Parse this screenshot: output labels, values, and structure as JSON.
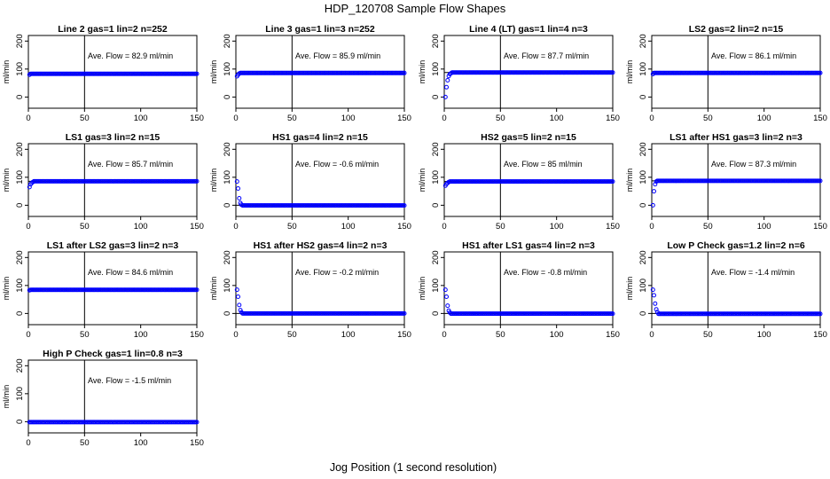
{
  "figure": {
    "title": "HDP_120708  Sample Flow Shapes",
    "xlabel": "Jog Position (1 second resolution)"
  },
  "style": {
    "point_color": "#0000ff",
    "line_color": "#000000"
  },
  "chart_data": [
    {
      "type": "scatter",
      "title": "Line 2 gas=1 lin=2 n=252",
      "annotation": "Ave. Flow =  82.9  ml/min",
      "ylabel": "ml/min",
      "xlim": [
        0,
        150
      ],
      "ylim": [
        -40,
        220
      ],
      "xticks": [
        0,
        50,
        100,
        150
      ],
      "yticks": [
        0,
        100,
        200
      ],
      "hlines": [
        82.9
      ],
      "vlines": [
        50
      ],
      "profile": {
        "start": [
          [
            1,
            80
          ]
        ],
        "plateau": 82.9,
        "plateau_from": 2
      }
    },
    {
      "type": "scatter",
      "title": "Line 3 gas=1 lin=3 n=252",
      "annotation": "Ave. Flow =  85.9  ml/min",
      "ylabel": "ml/min",
      "xlim": [
        0,
        150
      ],
      "ylim": [
        -40,
        220
      ],
      "xticks": [
        0,
        50,
        100,
        150
      ],
      "yticks": [
        0,
        100,
        200
      ],
      "hlines": [
        85.9
      ],
      "vlines": [
        50
      ],
      "profile": {
        "start": [
          [
            1,
            74
          ],
          [
            2,
            80
          ],
          [
            3,
            84
          ]
        ],
        "plateau": 85.9,
        "plateau_from": 4
      }
    },
    {
      "type": "scatter",
      "title": "Line 4 (LT) gas=1 lin=4 n=3",
      "annotation": "Ave. Flow =  87.7  ml/min",
      "ylabel": "ml/min",
      "xlim": [
        0,
        150
      ],
      "ylim": [
        -40,
        220
      ],
      "xticks": [
        0,
        50,
        100,
        150
      ],
      "yticks": [
        0,
        100,
        200
      ],
      "hlines": [
        87.7
      ],
      "vlines": [
        50
      ],
      "profile": {
        "start": [
          [
            1,
            0
          ],
          [
            2,
            35
          ],
          [
            3,
            60
          ],
          [
            4,
            75
          ],
          [
            5,
            82
          ],
          [
            6,
            85
          ]
        ],
        "plateau": 87.7,
        "plateau_from": 7
      }
    },
    {
      "type": "scatter",
      "title": "LS2 gas=2 lin=2 n=15",
      "annotation": "Ave. Flow =  86.1  ml/min",
      "ylabel": "ml/min",
      "xlim": [
        0,
        150
      ],
      "ylim": [
        -40,
        220
      ],
      "xticks": [
        0,
        50,
        100,
        150
      ],
      "yticks": [
        0,
        100,
        200
      ],
      "hlines": [
        86.1
      ],
      "vlines": [
        50
      ],
      "profile": {
        "start": [
          [
            1,
            82
          ]
        ],
        "plateau": 86.1,
        "plateau_from": 2
      }
    },
    {
      "type": "scatter",
      "title": "LS1 gas=3 lin=2 n=15",
      "annotation": "Ave. Flow =  85.7  ml/min",
      "ylabel": "ml/min",
      "xlim": [
        0,
        150
      ],
      "ylim": [
        -40,
        220
      ],
      "xticks": [
        0,
        50,
        100,
        150
      ],
      "yticks": [
        0,
        100,
        200
      ],
      "hlines": [
        85.7
      ],
      "vlines": [
        50
      ],
      "profile": {
        "start": [
          [
            1,
            65
          ],
          [
            2,
            75
          ],
          [
            3,
            80
          ],
          [
            4,
            83
          ]
        ],
        "plateau": 85.7,
        "plateau_from": 5
      }
    },
    {
      "type": "scatter",
      "title": "HS1 gas=4 lin=2 n=15",
      "annotation": "Ave. Flow =  -0.6  ml/min",
      "ylabel": "ml/min",
      "xlim": [
        0,
        150
      ],
      "ylim": [
        -40,
        220
      ],
      "xticks": [
        0,
        50,
        100,
        150
      ],
      "yticks": [
        0,
        100,
        200
      ],
      "hlines": [
        0
      ],
      "vlines": [
        50
      ],
      "profile": {
        "start": [
          [
            1,
            85
          ],
          [
            2,
            60
          ],
          [
            3,
            25
          ],
          [
            4,
            8
          ],
          [
            5,
            2
          ]
        ],
        "plateau": -0.6,
        "plateau_from": 6
      }
    },
    {
      "type": "scatter",
      "title": "HS2 gas=5 lin=2 n=15",
      "annotation": "Ave. Flow =  85  ml/min",
      "ylabel": "ml/min",
      "xlim": [
        0,
        150
      ],
      "ylim": [
        -40,
        220
      ],
      "xticks": [
        0,
        50,
        100,
        150
      ],
      "yticks": [
        0,
        100,
        200
      ],
      "hlines": [
        85
      ],
      "vlines": [
        50
      ],
      "profile": {
        "start": [
          [
            1,
            70
          ],
          [
            2,
            76
          ],
          [
            3,
            80
          ],
          [
            4,
            83
          ]
        ],
        "plateau": 85,
        "plateau_from": 5
      }
    },
    {
      "type": "scatter",
      "title": "LS1 after HS1 gas=3 lin=2 n=3",
      "annotation": "Ave. Flow =  87.3  ml/min",
      "ylabel": "ml/min",
      "xlim": [
        0,
        150
      ],
      "ylim": [
        -40,
        220
      ],
      "xticks": [
        0,
        50,
        100,
        150
      ],
      "yticks": [
        0,
        100,
        200
      ],
      "hlines": [
        87.3
      ],
      "vlines": [
        50
      ],
      "profile": {
        "start": [
          [
            1,
            0
          ],
          [
            2,
            50
          ],
          [
            3,
            75
          ],
          [
            4,
            85
          ]
        ],
        "plateau": 87.3,
        "plateau_from": 5
      }
    },
    {
      "type": "scatter",
      "title": "LS1 after LS2 gas=3 lin=2 n=3",
      "annotation": "Ave. Flow =  84.6  ml/min",
      "ylabel": "ml/min",
      "xlim": [
        0,
        150
      ],
      "ylim": [
        -40,
        220
      ],
      "xticks": [
        0,
        50,
        100,
        150
      ],
      "yticks": [
        0,
        100,
        200
      ],
      "hlines": [
        84.6
      ],
      "vlines": [
        50
      ],
      "profile": {
        "start": [
          [
            1,
            83
          ]
        ],
        "plateau": 84.6,
        "plateau_from": 2
      }
    },
    {
      "type": "scatter",
      "title": "HS1 after HS2 gas=4 lin=2 n=3",
      "annotation": "Ave. Flow =  -0.2  ml/min",
      "ylabel": "ml/min",
      "xlim": [
        0,
        150
      ],
      "ylim": [
        -40,
        220
      ],
      "xticks": [
        0,
        50,
        100,
        150
      ],
      "yticks": [
        0,
        100,
        200
      ],
      "hlines": [
        0
      ],
      "vlines": [
        50
      ],
      "profile": {
        "start": [
          [
            1,
            85
          ],
          [
            2,
            60
          ],
          [
            3,
            30
          ],
          [
            4,
            12
          ],
          [
            5,
            4
          ]
        ],
        "plateau": -0.2,
        "plateau_from": 6
      }
    },
    {
      "type": "scatter",
      "title": "HS1 after LS1 gas=4 lin=2 n=3",
      "annotation": "Ave. Flow =  -0.8  ml/min",
      "ylabel": "ml/min",
      "xlim": [
        0,
        150
      ],
      "ylim": [
        -40,
        220
      ],
      "xticks": [
        0,
        50,
        100,
        150
      ],
      "yticks": [
        0,
        100,
        200
      ],
      "hlines": [
        0
      ],
      "vlines": [
        50
      ],
      "profile": {
        "start": [
          [
            1,
            85
          ],
          [
            2,
            60
          ],
          [
            3,
            28
          ],
          [
            4,
            10
          ],
          [
            5,
            3
          ]
        ],
        "plateau": -0.8,
        "plateau_from": 6
      }
    },
    {
      "type": "scatter",
      "title": "Low P Check gas=1.2 lin=2 n=6",
      "annotation": "Ave. Flow =  -1.4  ml/min",
      "ylabel": "ml/min",
      "xlim": [
        0,
        150
      ],
      "ylim": [
        -40,
        220
      ],
      "xticks": [
        0,
        50,
        100,
        150
      ],
      "yticks": [
        0,
        100,
        200
      ],
      "hlines": [
        0
      ],
      "vlines": [
        50
      ],
      "profile": {
        "start": [
          [
            1,
            85
          ],
          [
            2,
            65
          ],
          [
            3,
            35
          ],
          [
            4,
            15
          ],
          [
            5,
            5
          ]
        ],
        "plateau": -1.4,
        "plateau_from": 6
      }
    },
    {
      "type": "scatter",
      "title": "High P Check gas=1 lin=0.8 n=3",
      "annotation": "Ave. Flow =  -1.5  ml/min",
      "ylabel": "ml/min",
      "xlim": [
        0,
        150
      ],
      "ylim": [
        -40,
        220
      ],
      "xticks": [
        0,
        50,
        100,
        150
      ],
      "yticks": [
        0,
        100,
        200
      ],
      "hlines": [
        0
      ],
      "vlines": [
        50
      ],
      "profile": {
        "start": [],
        "plateau": -1.5,
        "plateau_from": 1
      }
    }
  ]
}
